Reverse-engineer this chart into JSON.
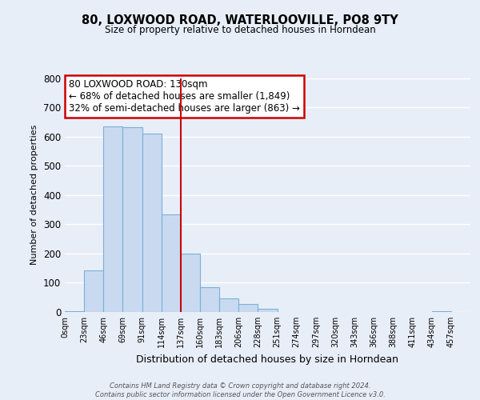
{
  "title": "80, LOXWOOD ROAD, WATERLOOVILLE, PO8 9TY",
  "subtitle": "Size of property relative to detached houses in Horndean",
  "xlabel": "Distribution of detached houses by size in Horndean",
  "ylabel": "Number of detached properties",
  "bin_labels": [
    "0sqm",
    "23sqm",
    "46sqm",
    "69sqm",
    "91sqm",
    "114sqm",
    "137sqm",
    "160sqm",
    "183sqm",
    "206sqm",
    "228sqm",
    "251sqm",
    "274sqm",
    "297sqm",
    "320sqm",
    "343sqm",
    "366sqm",
    "388sqm",
    "411sqm",
    "434sqm",
    "457sqm"
  ],
  "bar_heights": [
    2,
    143,
    635,
    632,
    609,
    333,
    200,
    84,
    46,
    27,
    11,
    0,
    0,
    0,
    0,
    0,
    0,
    0,
    0,
    4
  ],
  "bar_color": "#c9daf0",
  "bar_edge_color": "#7ab0d8",
  "property_line_x": 5.5,
  "property_line_color": "#cc0000",
  "annotation_line1": "80 LOXWOOD ROAD: 130sqm",
  "annotation_line2": "← 68% of detached houses are smaller (1,849)",
  "annotation_line3": "32% of semi-detached houses are larger (863) →",
  "annotation_box_color": "#ffffff",
  "annotation_box_edge_color": "#cc0000",
  "ylim": [
    0,
    800
  ],
  "yticks": [
    0,
    100,
    200,
    300,
    400,
    500,
    600,
    700,
    800
  ],
  "footer_text": "Contains HM Land Registry data © Crown copyright and database right 2024.\nContains public sector information licensed under the Open Government Licence v3.0.",
  "background_color": "#e8eef8"
}
